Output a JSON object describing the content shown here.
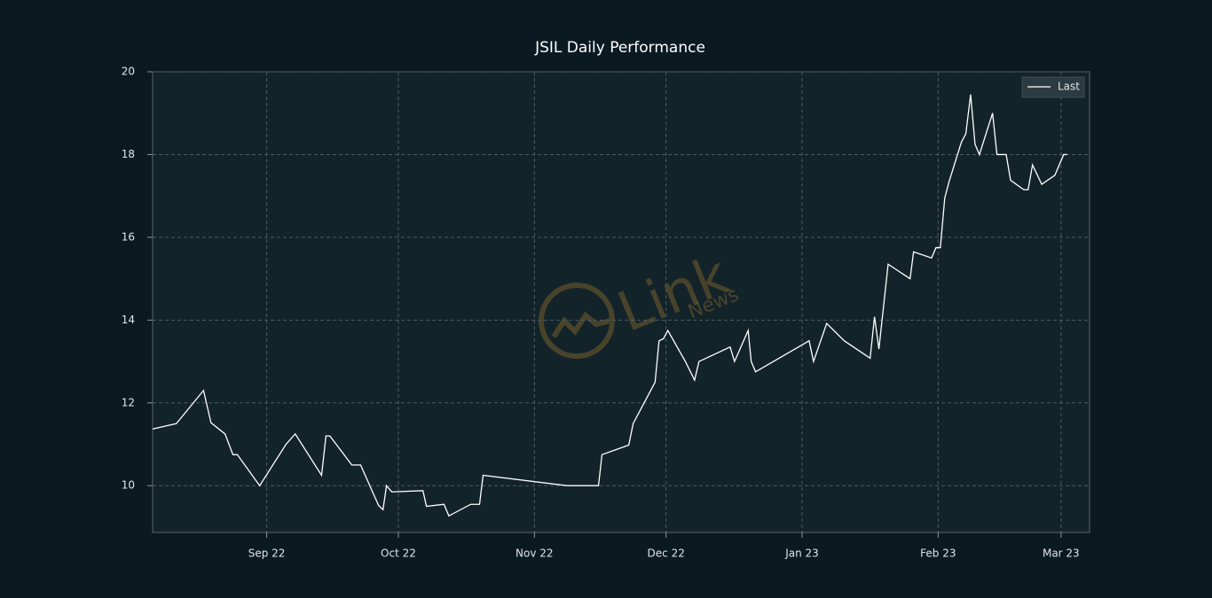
{
  "chart_data": {
    "type": "line",
    "title": "JSIL Daily Performance",
    "x": [
      -26,
      -20.6,
      -14.4,
      -12.7,
      -9.5,
      -7.7,
      -6.7,
      -1.6,
      4.4,
      6.5,
      12.5,
      13.5,
      14.4,
      19.4,
      21.4,
      25.5,
      26.5,
      27.3,
      28.5,
      35.6,
      36.4,
      40.4,
      41.5,
      46.5,
      48.5,
      49.3,
      68.5,
      75.6,
      76.4,
      82.5,
      83.5,
      85.5,
      88.5,
      89.4,
      90.4,
      91.4,
      95.4,
      97.5,
      98.5,
      105.6,
      106.6,
      109.7,
      110.4,
      111.4,
      123.6,
      124.6,
      127.6,
      131.6,
      137.5,
      138.5,
      139.5,
      141.6,
      146.6,
      147.4,
      151.5,
      152.5,
      153.5,
      154.5,
      155.5,
      158.3,
      159.3,
      160.4,
      161.4,
      162.4,
      165.4,
      166.4,
      168.5,
      169.5,
      172.5,
      173.5,
      174.5,
      176.6,
      179.6,
      181.6,
      182.4
    ],
    "series": [
      {
        "name": "Last",
        "color": "#ffffff",
        "values": [
          11.37,
          11.5,
          12.3,
          11.52,
          11.25,
          10.75,
          10.75,
          10.0,
          11.0,
          11.25,
          10.25,
          11.2,
          11.2,
          10.5,
          10.5,
          9.52,
          9.42,
          10.0,
          9.85,
          9.88,
          9.5,
          9.55,
          9.27,
          9.55,
          9.55,
          10.25,
          10.0,
          10.0,
          10.75,
          10.98,
          11.5,
          11.9,
          12.5,
          13.5,
          13.55,
          13.75,
          13.0,
          12.55,
          13.0,
          13.35,
          13.0,
          13.75,
          13.0,
          12.75,
          13.5,
          13.0,
          13.92,
          13.5,
          13.08,
          14.08,
          13.3,
          15.35,
          15.0,
          15.65,
          15.5,
          15.75,
          15.75,
          16.95,
          17.35,
          18.3,
          18.5,
          19.45,
          18.25,
          18.0,
          19.0,
          18.0,
          18.0,
          17.38,
          17.15,
          17.15,
          17.75,
          17.28,
          17.5,
          18.0,
          18.0
        ]
      }
    ],
    "xlim": [
      -26,
      187.5
    ],
    "xticks": [
      {
        "value": 0,
        "label": "Sep 22"
      },
      {
        "value": 30,
        "label": "Oct 22"
      },
      {
        "value": 61,
        "label": "Nov 22"
      },
      {
        "value": 91,
        "label": "Dec 22"
      },
      {
        "value": 122,
        "label": "Jan 23"
      },
      {
        "value": 153,
        "label": "Feb 23"
      },
      {
        "value": 181,
        "label": "Mar 23"
      }
    ],
    "ylim": [
      8.87,
      20
    ],
    "yticks": [
      10,
      12,
      14,
      16,
      18,
      20
    ],
    "grid": true,
    "legend": "upper right",
    "watermark": [
      "Link",
      "News"
    ]
  }
}
